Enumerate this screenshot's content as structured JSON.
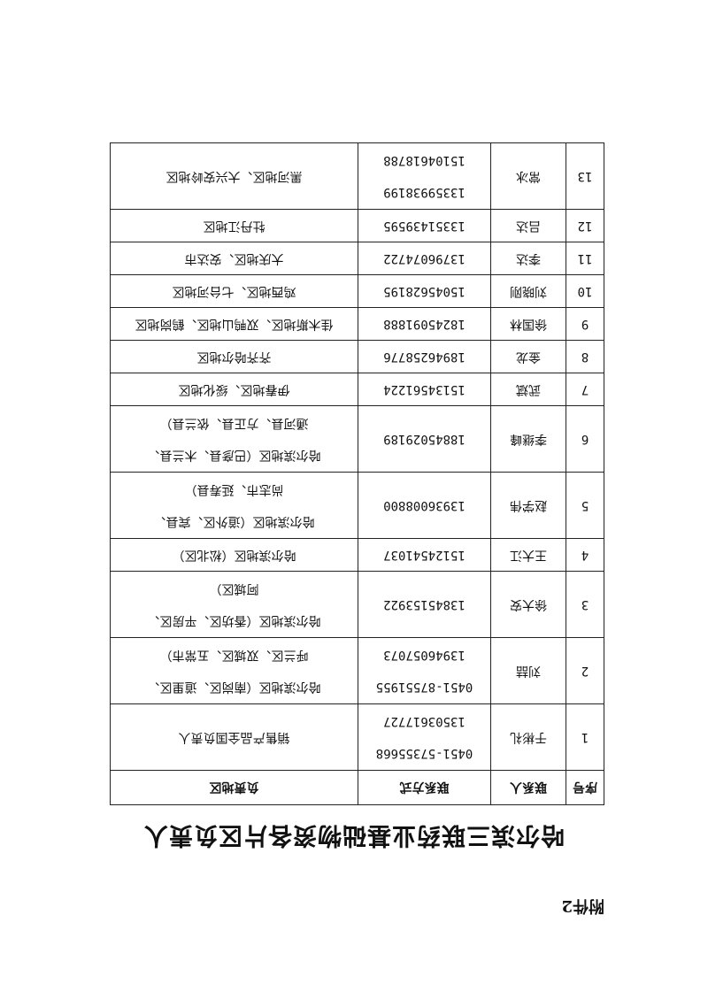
{
  "attachment_label": "附件2",
  "title": "哈尔滨三联药业基础物资各片区负责人",
  "table": {
    "headers": [
      "序号",
      "联系人",
      "联系方式",
      "负责地区"
    ],
    "rows": [
      {
        "no": "1",
        "contact": "于彬礼",
        "phones": [
          "0451-57355668",
          "13503617727"
        ],
        "region": [
          "销售产品全国负责人"
        ]
      },
      {
        "no": "2",
        "contact": "刘喆",
        "phones": [
          "0451-87551955",
          "13946057073"
        ],
        "region": [
          "哈尔滨地区（南岗区、道里区、",
          "呼兰区、双城区、五常市）"
        ]
      },
      {
        "no": "3",
        "contact": "徐大安",
        "phones": [
          "13845153922"
        ],
        "region": [
          "哈尔滨地区（香坊区、平房区、",
          "阿城区）"
        ]
      },
      {
        "no": "4",
        "contact": "王大江",
        "phones": [
          "15124541037"
        ],
        "region": [
          "哈尔滨地区（松北区）"
        ]
      },
      {
        "no": "5",
        "contact": "赵学伟",
        "phones": [
          "13936008800"
        ],
        "region": [
          "哈尔滨地区（道外区、宾县、",
          "尚志市、延寿县）"
        ]
      },
      {
        "no": "6",
        "contact": "李继峰",
        "phones": [
          "18845029189"
        ],
        "region": [
          "哈尔滨地区（巴彦县、木兰县、",
          "通河县、方正县、依兰县）"
        ]
      },
      {
        "no": "7",
        "contact": "武斌",
        "phones": [
          "15134561224"
        ],
        "region": [
          "伊春地区、绥化地区"
        ]
      },
      {
        "no": "8",
        "contact": "金龙",
        "phones": [
          "18946258776"
        ],
        "region": [
          "齐齐哈尔地区"
        ]
      },
      {
        "no": "9",
        "contact": "徐国林",
        "phones": [
          "18245091888"
        ],
        "region": [
          "佳木斯地区、双鸭山地区、鹤岗地区"
        ]
      },
      {
        "no": "10",
        "contact": "刘晓刚",
        "phones": [
          "15045628195"
        ],
        "region": [
          "鸡西地区、七台河地区"
        ]
      },
      {
        "no": "11",
        "contact": "李达",
        "phones": [
          "13796074722"
        ],
        "region": [
          "大庆地区、安达市"
        ]
      },
      {
        "no": "12",
        "contact": "吕达",
        "phones": [
          "13351439595"
        ],
        "region": [
          "牡丹江地区"
        ]
      },
      {
        "no": "13",
        "contact": "常冰",
        "phones": [
          "13359938199",
          "15104618788"
        ],
        "region": [
          "黑河地区、大兴安岭地区"
        ]
      }
    ]
  }
}
